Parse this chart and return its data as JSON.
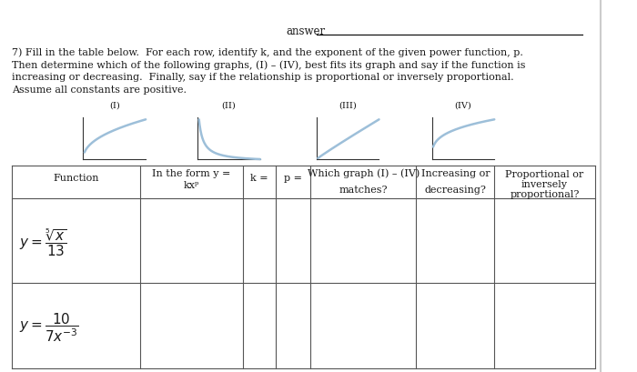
{
  "answer_label": "answer",
  "instructions_line1": "7) Fill in the table below.  For each row, identify k, and the exponent of the given power function, p.",
  "instructions_line2": "Then determine which of the following graphs, (I) – (IV), best fits its graph and say if the function is",
  "instructions_line3": "increasing or decreasing.  Finally, say if the relationship is proportional or inversely proportional.",
  "instructions_line4": "Assume all constants are positive.",
  "graph_labels": [
    "(I)",
    "(II)",
    "(III)",
    "(IV)"
  ],
  "header_col0": "Function",
  "header_col1a": "In the form y =",
  "header_col1b": "kxᵖ",
  "header_col2": "k =",
  "header_col3": "p =",
  "header_col4a": "Which graph (I) – (IV)",
  "header_col4b": "matches?",
  "header_col5a": "Increasing or",
  "header_col5b": "decreasing?",
  "header_col6a": "Proportional or",
  "header_col6b": "inversely",
  "header_col6c": "proportional?",
  "background_color": "#ffffff",
  "text_color": "#1a1a1a",
  "curve_color": "#9dbfd9",
  "table_line_color": "#888888"
}
